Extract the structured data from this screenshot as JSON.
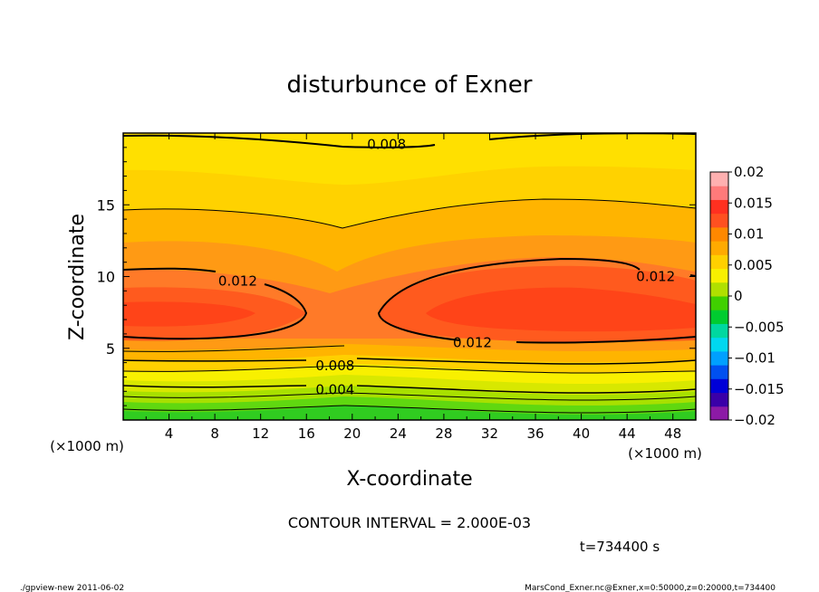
{
  "chart_data": {
    "type": "heatmap",
    "title": "disturbunce of Exner",
    "xlabel": "X-coordinate",
    "ylabel": "Z-coordinate",
    "x_unit": "(×1000 m)",
    "xlim": [
      0,
      50
    ],
    "ylim": [
      0,
      20
    ],
    "x_ticks": [
      "4",
      "8",
      "12",
      "16",
      "20",
      "24",
      "28",
      "32",
      "36",
      "40",
      "44",
      "48"
    ],
    "y_ticks": [
      "5",
      "10",
      "15"
    ],
    "colorbar": {
      "range": [
        -0.02,
        0.02
      ],
      "labels": [
        "0.02",
        "0.015",
        "0.01",
        "0.005",
        "0",
        "−0.005",
        "−0.01",
        "−0.015",
        "−0.02"
      ],
      "colors": [
        "#8c1aa6",
        "#3a00a8",
        "#0000d8",
        "#0050f0",
        "#00a0ff",
        "#00d8f0",
        "#00d8a0",
        "#00cc30",
        "#40d000",
        "#b0e000",
        "#f8f000",
        "#ffd000",
        "#ffaa00",
        "#ff8800",
        "#ff5020",
        "#ff3020",
        "#ff7a7a",
        "#ffb0b0"
      ]
    },
    "contour_labels": [
      {
        "text": "0.008",
        "x": 23,
        "z": 19.2
      },
      {
        "text": "0.012",
        "x": 10,
        "z": 9.7
      },
      {
        "text": "0.012",
        "x": 46.5,
        "z": 10.0
      },
      {
        "text": "0.012",
        "x": 30.5,
        "z": 5.4
      },
      {
        "text": "0.008",
        "x": 18.5,
        "z": 3.8
      },
      {
        "text": "0.004",
        "x": 18.5,
        "z": 2.1
      }
    ],
    "contour_interval": "CONTOUR INTERVAL = 2.000E-03",
    "time": "t=734400 s"
  },
  "footer": {
    "left": "./gpview-new  2011-06-02",
    "right": "MarsCond_Exner.nc@Exner,x=0:50000,z=0:20000,t=734400"
  },
  "colors": {
    "max_core": "#ff5a1e",
    "high": "#ff7a28",
    "mid_high": "#ff9a14",
    "mid": "#ffb400",
    "upper": "#ffd200",
    "top": "#ffe400",
    "yellow_green": "#d8e800",
    "green": "#40d010"
  }
}
